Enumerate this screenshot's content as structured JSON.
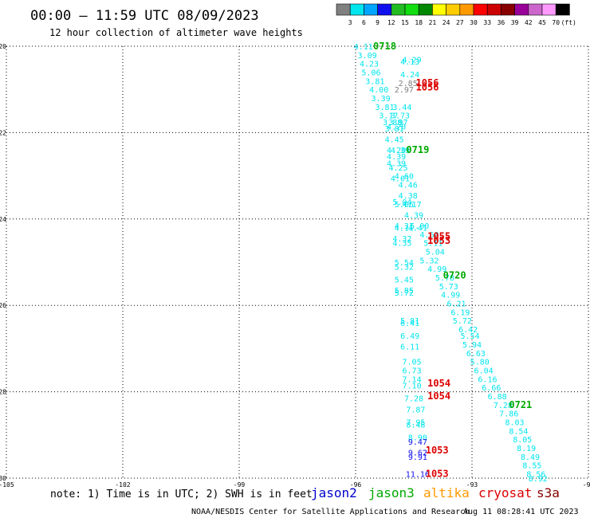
{
  "header": {
    "title": "00:00 – 11:59 UTC 08/09/2023",
    "subtitle": "12 hour collection of altimeter wave heights"
  },
  "colorbar": {
    "labels": [
      "3",
      "6",
      "9",
      "12",
      "15",
      "18",
      "21",
      "24",
      "27",
      "30",
      "33",
      "36",
      "39",
      "42",
      "45",
      "70"
    ],
    "unit": "(ft)",
    "colors": [
      "#808080",
      "#00e5ee",
      "#00a5ff",
      "#1010ee",
      "#22bb22",
      "#11dd11",
      "#008800",
      "#ffff00",
      "#ffcc00",
      "#ff9900",
      "#ff0000",
      "#cc0000",
      "#880000",
      "#990099",
      "#cc66cc",
      "#ff99ff",
      "#000000"
    ]
  },
  "note": "note: 1) Time is in UTC; 2) SWH is in feet",
  "satellites": [
    {
      "name": "jason2",
      "color": "#0000cc"
    },
    {
      "name": "jason3",
      "color": "#00aa00"
    },
    {
      "name": "altika",
      "color": "#ff9900"
    },
    {
      "name": "cryosat",
      "color": "#dd0000"
    },
    {
      "name": "s3a",
      "color": "#880000"
    }
  ],
  "footer": {
    "credit": "NOAA/NESDIS Center for Satellite Applications and Research",
    "timestamp": "Aug 11 08:28:41 UTC 2023"
  },
  "chart_data": {
    "type": "scatter",
    "xlim": [
      -105,
      -90
    ],
    "ylim": [
      -30,
      -20
    ],
    "x_ticks": [
      "-105",
      "-102",
      "-99",
      "-96",
      "-93",
      "-90"
    ],
    "y_ticks": [
      "-20",
      "-22",
      "-24",
      "-26",
      "-28",
      "-30"
    ],
    "x_tick_values": [
      -105,
      -102,
      -99,
      -96,
      -93,
      -90
    ],
    "y_tick_values": [
      -20,
      -22,
      -24,
      -26,
      -28,
      -30
    ],
    "grid": true,
    "wave_heights": [
      {
        "x": -95.8,
        "y": -20.0,
        "label": "4.11",
        "color": "#00e5ee"
      },
      {
        "x": -95.7,
        "y": -20.2,
        "label": "3.09",
        "color": "#00e5ee"
      },
      {
        "x": -95.65,
        "y": -20.4,
        "label": "4.23",
        "color": "#00e5ee"
      },
      {
        "x": -94.55,
        "y": -20.3,
        "label": "4.29",
        "color": "#00e5ee"
      },
      {
        "x": -94.6,
        "y": -20.35,
        "label": "4.13",
        "color": "#00e5ee"
      },
      {
        "x": -95.6,
        "y": -20.6,
        "label": "5.06",
        "color": "#00e5ee"
      },
      {
        "x": -94.6,
        "y": -20.65,
        "label": "4.24",
        "color": "#00e5ee"
      },
      {
        "x": -95.5,
        "y": -20.8,
        "label": "3.81",
        "color": "#00e5ee"
      },
      {
        "x": -94.65,
        "y": -20.85,
        "label": "2.85",
        "color": "#808080"
      },
      {
        "x": -95.4,
        "y": -21.0,
        "label": "4.00",
        "color": "#00e5ee"
      },
      {
        "x": -94.75,
        "y": -21.0,
        "label": "2.97",
        "color": "#808080"
      },
      {
        "x": -95.35,
        "y": -21.2,
        "label": "3.39",
        "color": "#00e5ee"
      },
      {
        "x": -95.25,
        "y": -21.4,
        "label": "3.81",
        "color": "#00e5ee"
      },
      {
        "x": -94.8,
        "y": -21.4,
        "label": "3.44",
        "color": "#00e5ee"
      },
      {
        "x": -95.15,
        "y": -21.6,
        "label": "3.17",
        "color": "#00e5ee"
      },
      {
        "x": -94.85,
        "y": -21.6,
        "label": "3.73",
        "color": "#00e5ee"
      },
      {
        "x": -95.05,
        "y": -21.75,
        "label": "3.88",
        "color": "#00e5ee"
      },
      {
        "x": -94.9,
        "y": -21.75,
        "label": "3.97",
        "color": "#00e5ee"
      },
      {
        "x": -95.0,
        "y": -21.9,
        "label": "3.81",
        "color": "#00e5ee"
      },
      {
        "x": -94.95,
        "y": -21.85,
        "label": "4.20",
        "color": "#00e5ee"
      },
      {
        "x": -95.0,
        "y": -22.15,
        "label": "4.45",
        "color": "#00e5ee"
      },
      {
        "x": -94.95,
        "y": -22.4,
        "label": "4.20",
        "color": "#00e5ee"
      },
      {
        "x": -94.85,
        "y": -22.4,
        "label": "4.39",
        "color": "#00e5ee"
      },
      {
        "x": -94.95,
        "y": -22.55,
        "label": "4.39",
        "color": "#00e5ee"
      },
      {
        "x": -94.95,
        "y": -22.7,
        "label": "4.39",
        "color": "#00e5ee"
      },
      {
        "x": -94.9,
        "y": -22.8,
        "label": "4.25",
        "color": "#00e5ee"
      },
      {
        "x": -94.75,
        "y": -23.0,
        "label": "4.60",
        "color": "#00e5ee"
      },
      {
        "x": -94.85,
        "y": -23.05,
        "label": "4.01",
        "color": "#00e5ee"
      },
      {
        "x": -94.65,
        "y": -23.2,
        "label": "4.46",
        "color": "#00e5ee"
      },
      {
        "x": -94.65,
        "y": -23.45,
        "label": "4.38",
        "color": "#00e5ee"
      },
      {
        "x": -94.8,
        "y": -23.6,
        "label": "5.04",
        "color": "#00e5ee"
      },
      {
        "x": -94.75,
        "y": -23.65,
        "label": "5.06",
        "color": "#00e5ee"
      },
      {
        "x": -94.55,
        "y": -23.65,
        "label": "4.17",
        "color": "#00e5ee"
      },
      {
        "x": -94.5,
        "y": -23.9,
        "label": "4.39",
        "color": "#00e5ee"
      },
      {
        "x": -94.4,
        "y": -24.2,
        "label": "4.41",
        "color": "#00e5ee"
      },
      {
        "x": -94.75,
        "y": -24.15,
        "label": "4.31",
        "color": "#00e5ee"
      },
      {
        "x": -94.75,
        "y": -24.2,
        "label": "4.11",
        "color": "#00e5ee"
      },
      {
        "x": -94.35,
        "y": -24.15,
        "label": "5.00",
        "color": "#00e5ee"
      },
      {
        "x": -94.1,
        "y": -24.35,
        "label": "4.60",
        "color": "#00e5ee"
      },
      {
        "x": -94.8,
        "y": -24.45,
        "label": "4.32",
        "color": "#00e5ee"
      },
      {
        "x": -94.8,
        "y": -24.55,
        "label": "4.35",
        "color": "#00e5ee"
      },
      {
        "x": -94.0,
        "y": -24.55,
        "label": "5.11",
        "color": "#00e5ee"
      },
      {
        "x": -93.95,
        "y": -24.75,
        "label": "5.04",
        "color": "#00e5ee"
      },
      {
        "x": -94.1,
        "y": -24.95,
        "label": "5.32",
        "color": "#00e5ee"
      },
      {
        "x": -94.75,
        "y": -25.0,
        "label": "5.54",
        "color": "#00e5ee"
      },
      {
        "x": -94.75,
        "y": -25.1,
        "label": "5.32",
        "color": "#00e5ee"
      },
      {
        "x": -93.9,
        "y": -25.15,
        "label": "4.99",
        "color": "#00e5ee"
      },
      {
        "x": -93.7,
        "y": -25.35,
        "label": "5.78",
        "color": "#00e5ee"
      },
      {
        "x": -94.75,
        "y": -25.4,
        "label": "5.45",
        "color": "#00e5ee"
      },
      {
        "x": -93.6,
        "y": -25.55,
        "label": "5.73",
        "color": "#00e5ee"
      },
      {
        "x": -94.75,
        "y": -25.65,
        "label": "5.85",
        "color": "#00e5ee"
      },
      {
        "x": -94.75,
        "y": -25.7,
        "label": "5.72",
        "color": "#00e5ee"
      },
      {
        "x": -93.55,
        "y": -25.75,
        "label": "4.99",
        "color": "#00e5ee"
      },
      {
        "x": -93.4,
        "y": -25.95,
        "label": "6.21",
        "color": "#00e5ee"
      },
      {
        "x": -93.3,
        "y": -26.15,
        "label": "6.19",
        "color": "#00e5ee"
      },
      {
        "x": -94.6,
        "y": -26.35,
        "label": "5.81",
        "color": "#00e5ee"
      },
      {
        "x": -94.6,
        "y": -26.4,
        "label": "6.41",
        "color": "#00e5ee"
      },
      {
        "x": -93.25,
        "y": -26.35,
        "label": "5.72",
        "color": "#00e5ee"
      },
      {
        "x": -93.1,
        "y": -26.55,
        "label": "6.42",
        "color": "#00e5ee"
      },
      {
        "x": -93.05,
        "y": -26.7,
        "label": "5.54",
        "color": "#00e5ee"
      },
      {
        "x": -94.6,
        "y": -26.7,
        "label": "6.49",
        "color": "#00e5ee"
      },
      {
        "x": -93.0,
        "y": -26.9,
        "label": "5.94",
        "color": "#00e5ee"
      },
      {
        "x": -94.6,
        "y": -26.95,
        "label": "6.11",
        "color": "#00e5ee"
      },
      {
        "x": -92.9,
        "y": -27.1,
        "label": "6.63",
        "color": "#00e5ee"
      },
      {
        "x": -94.55,
        "y": -27.3,
        "label": "7.05",
        "color": "#00e5ee"
      },
      {
        "x": -92.8,
        "y": -27.3,
        "label": "5.80",
        "color": "#00e5ee"
      },
      {
        "x": -94.55,
        "y": -27.5,
        "label": "6.73",
        "color": "#00e5ee"
      },
      {
        "x": -92.7,
        "y": -27.5,
        "label": "6.04",
        "color": "#00e5ee"
      },
      {
        "x": -94.55,
        "y": -27.7,
        "label": "7.14",
        "color": "#00e5ee"
      },
      {
        "x": -92.6,
        "y": -27.7,
        "label": "6.16",
        "color": "#00e5ee"
      },
      {
        "x": -94.55,
        "y": -27.85,
        "label": "7.10",
        "color": "#00e5ee"
      },
      {
        "x": -92.5,
        "y": -27.9,
        "label": "6.66",
        "color": "#00e5ee"
      },
      {
        "x": -94.5,
        "y": -28.15,
        "label": "7.28",
        "color": "#00e5ee"
      },
      {
        "x": -92.35,
        "y": -28.1,
        "label": "6.88",
        "color": "#00e5ee"
      },
      {
        "x": -92.2,
        "y": -28.3,
        "label": "7.28",
        "color": "#00e5ee"
      },
      {
        "x": -94.45,
        "y": -28.4,
        "label": "7.87",
        "color": "#00e5ee"
      },
      {
        "x": -92.05,
        "y": -28.5,
        "label": "7.86",
        "color": "#00e5ee"
      },
      {
        "x": -91.9,
        "y": -28.7,
        "label": "8.03",
        "color": "#00e5ee"
      },
      {
        "x": -94.45,
        "y": -28.7,
        "label": "7.95",
        "color": "#00e5ee"
      },
      {
        "x": -94.45,
        "y": -28.75,
        "label": "8.48",
        "color": "#00e5ee"
      },
      {
        "x": -91.8,
        "y": -28.9,
        "label": "8.54",
        "color": "#00e5ee"
      },
      {
        "x": -94.4,
        "y": -29.05,
        "label": "8.90",
        "color": "#00e5ee"
      },
      {
        "x": -91.7,
        "y": -29.1,
        "label": "8.05",
        "color": "#00e5ee"
      },
      {
        "x": -94.4,
        "y": -29.15,
        "label": "9.47",
        "color": "#1010ee"
      },
      {
        "x": -91.6,
        "y": -29.3,
        "label": "8.19",
        "color": "#00e5ee"
      },
      {
        "x": -94.4,
        "y": -29.4,
        "label": "9.62",
        "color": "#1010ee"
      },
      {
        "x": -94.4,
        "y": -29.5,
        "label": "9.91",
        "color": "#1010ee"
      },
      {
        "x": -91.5,
        "y": -29.5,
        "label": "8.49",
        "color": "#00e5ee"
      },
      {
        "x": -91.45,
        "y": -29.7,
        "label": "8.55",
        "color": "#00e5ee"
      },
      {
        "x": -94.4,
        "y": -29.9,
        "label": "11.16",
        "color": "#1010ee"
      },
      {
        "x": -91.35,
        "y": -29.9,
        "label": "8.56",
        "color": "#00e5ee"
      },
      {
        "x": -91.3,
        "y": -30.0,
        "label": "8.92",
        "color": "#00e5ee"
      }
    ],
    "pass_times": [
      {
        "x": -95.25,
        "y": -20.0,
        "label": "0718",
        "color": "#00aa00"
      },
      {
        "x": -94.15,
        "y": -20.85,
        "label": "1056",
        "color": "#dd0000"
      },
      {
        "x": -94.15,
        "y": -20.95,
        "label": "1056",
        "color": "#dd0000"
      },
      {
        "x": -94.4,
        "y": -22.4,
        "label": "0719",
        "color": "#00aa00"
      },
      {
        "x": -93.85,
        "y": -24.4,
        "label": "1055",
        "color": "#dd0000"
      },
      {
        "x": -93.85,
        "y": -24.5,
        "label": "1053",
        "color": "#dd0000"
      },
      {
        "x": -93.45,
        "y": -25.3,
        "label": "0720",
        "color": "#00aa00"
      },
      {
        "x": -93.85,
        "y": -27.8,
        "label": "1054",
        "color": "#dd0000"
      },
      {
        "x": -93.85,
        "y": -28.1,
        "label": "1054",
        "color": "#dd0000"
      },
      {
        "x": -91.75,
        "y": -28.3,
        "label": "0721",
        "color": "#00aa00"
      },
      {
        "x": -93.9,
        "y": -29.35,
        "label": "1053",
        "color": "#dd0000"
      },
      {
        "x": -93.9,
        "y": -29.9,
        "label": "1053",
        "color": "#dd0000"
      }
    ]
  }
}
